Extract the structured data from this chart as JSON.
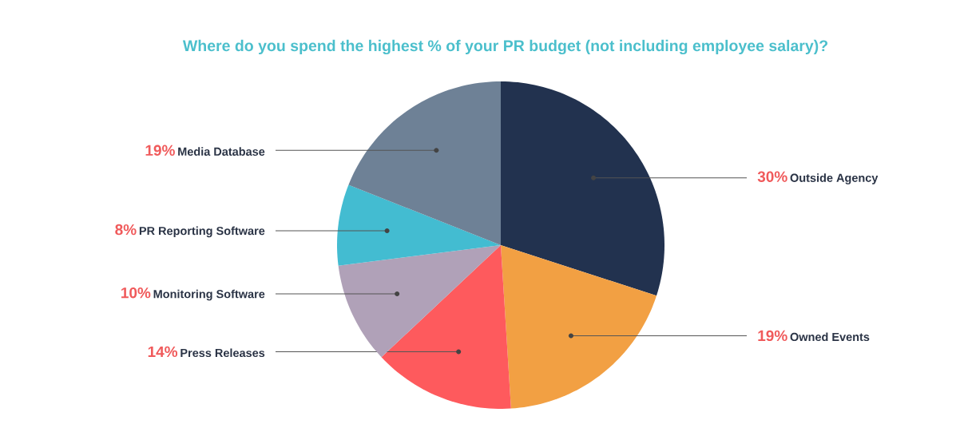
{
  "chart_data": {
    "type": "pie",
    "title": "Where do you spend the highest % of your PR budget (not including employee salary)?",
    "categories": [
      "Outside Agency",
      "Owned Events",
      "Press Releases",
      "Monitoring Software",
      "PR Reporting Software",
      "Media Database"
    ],
    "values": [
      30,
      19,
      14,
      10,
      8,
      19
    ],
    "value_labels": [
      "30%",
      "19%",
      "14%",
      "10%",
      "8%",
      "19%"
    ],
    "colors": [
      "#22324f",
      "#f2a043",
      "#fe5a5d",
      "#b0a1b8",
      "#43bcd1",
      "#6e8196"
    ]
  }
}
